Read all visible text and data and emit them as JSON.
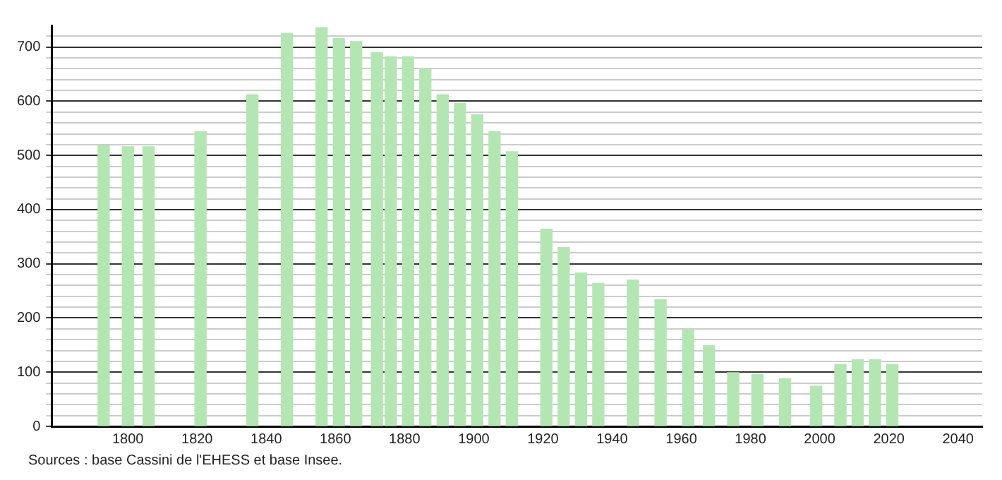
{
  "chart_data": {
    "type": "bar",
    "x": [
      1793,
      1800,
      1806,
      1821,
      1836,
      1846,
      1856,
      1861,
      1866,
      1872,
      1876,
      1881,
      1886,
      1891,
      1896,
      1901,
      1906,
      1911,
      1921,
      1926,
      1931,
      1936,
      1946,
      1954,
      1962,
      1968,
      1975,
      1982,
      1990,
      1999,
      2006,
      2011,
      2016,
      2021
    ],
    "values": [
      518,
      516,
      516,
      544,
      612,
      725,
      736,
      716,
      710,
      690,
      682,
      682,
      659,
      612,
      596,
      575,
      544,
      507,
      364,
      330,
      283,
      264,
      270,
      234,
      179,
      149,
      99,
      96,
      88,
      74,
      114,
      123,
      123,
      114
    ],
    "color": "#b3e6b3",
    "xlim": [
      1778,
      2047
    ],
    "xticks": [
      1800,
      1820,
      1840,
      1860,
      1880,
      1900,
      1920,
      1940,
      1960,
      1980,
      2000,
      2020,
      2040
    ],
    "ylim": [
      0,
      740
    ],
    "yticks": [
      0,
      {
        "value": 20,
        "label": null
      },
      {
        "value": 40,
        "label": null
      },
      {
        "value": 60,
        "label": null
      },
      {
        "value": 80,
        "label": null
      },
      100,
      {
        "value": 120,
        "label": null
      },
      {
        "value": 140,
        "label": null
      },
      {
        "value": 160,
        "label": null
      },
      {
        "value": 180,
        "label": null
      },
      200,
      {
        "value": 220,
        "label": null
      },
      {
        "value": 240,
        "label": null
      },
      {
        "value": 260,
        "label": null
      },
      {
        "value": 280,
        "label": null
      },
      300,
      {
        "value": 320,
        "label": null
      },
      {
        "value": 340,
        "label": null
      },
      {
        "value": 360,
        "label": null
      },
      {
        "value": 380,
        "label": null
      },
      400,
      {
        "value": 420,
        "label": null
      },
      {
        "value": 440,
        "label": null
      },
      {
        "value": 460,
        "label": null
      },
      {
        "value": 480,
        "label": null
      },
      500,
      {
        "value": 520,
        "label": null
      },
      {
        "value": 540,
        "label": null
      },
      {
        "value": 560,
        "label": null
      },
      {
        "value": 580,
        "label": null
      },
      600,
      {
        "value": 620,
        "label": null
      },
      {
        "value": 640,
        "label": null
      },
      {
        "value": 660,
        "label": null
      },
      {
        "value": 680,
        "label": null
      },
      700,
      {
        "value": 720,
        "label": null
      }
    ],
    "grid": "y",
    "legend": false,
    "annotations": [
      "Sources : base Cassini de l'EHESS et base Insee."
    ]
  }
}
